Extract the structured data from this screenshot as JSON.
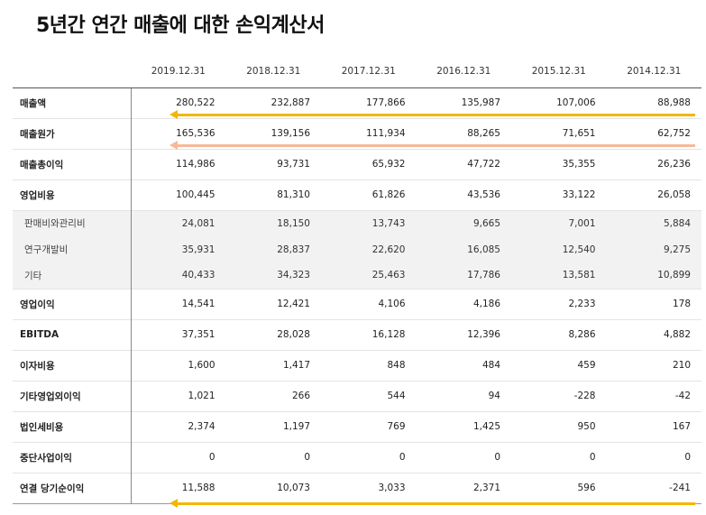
{
  "title": "5년간 연간 매출에 대한 손익계산서",
  "columns": [
    "2019.12.31",
    "2018.12.31",
    "2017.12.31",
    "2016.12.31",
    "2015.12.31",
    "2014.12.31"
  ],
  "rows": [
    {
      "label": "매출액",
      "values": [
        "280,522",
        "232,887",
        "177,866",
        "135,987",
        "107,006",
        "88,988"
      ]
    },
    {
      "label": "매출원가",
      "values": [
        "165,536",
        "139,156",
        "111,934",
        "88,265",
        "71,651",
        "62,752"
      ]
    },
    {
      "label": "매출총이익",
      "values": [
        "114,986",
        "93,731",
        "65,932",
        "47,722",
        "35,355",
        "26,236"
      ]
    },
    {
      "label": "영업비용",
      "values": [
        "100,445",
        "81,310",
        "61,826",
        "43,536",
        "33,122",
        "26,058"
      ]
    },
    {
      "label": "판매비와관리비",
      "values": [
        "24,081",
        "18,150",
        "13,743",
        "9,665",
        "7,001",
        "5,884"
      ]
    },
    {
      "label": "연구개발비",
      "values": [
        "35,931",
        "28,837",
        "22,620",
        "16,085",
        "12,540",
        "9,275"
      ]
    },
    {
      "label": "기타",
      "values": [
        "40,433",
        "34,323",
        "25,463",
        "17,786",
        "13,581",
        "10,899"
      ]
    },
    {
      "label": "영업이익",
      "values": [
        "14,541",
        "12,421",
        "4,106",
        "4,186",
        "2,233",
        "178"
      ]
    },
    {
      "label": "EBITDA",
      "values": [
        "37,351",
        "28,028",
        "16,128",
        "12,396",
        "8,286",
        "4,882"
      ]
    },
    {
      "label": "이자비용",
      "values": [
        "1,600",
        "1,417",
        "848",
        "484",
        "459",
        "210"
      ]
    },
    {
      "label": "기타영업외이익",
      "values": [
        "1,021",
        "266",
        "544",
        "94",
        "-228",
        "-42"
      ]
    },
    {
      "label": "법인세비용",
      "values": [
        "2,374",
        "1,197",
        "769",
        "1,425",
        "950",
        "167"
      ]
    },
    {
      "label": "중단사업이익",
      "values": [
        "0",
        "0",
        "0",
        "0",
        "0",
        "0"
      ]
    },
    {
      "label": "연결 당기순이익",
      "values": [
        "11,588",
        "10,073",
        "3,033",
        "2,371",
        "596",
        "-241"
      ]
    }
  ],
  "colors": {
    "arrow_primary": "#f2b705",
    "arrow_secondary": "#f6b99a"
  }
}
